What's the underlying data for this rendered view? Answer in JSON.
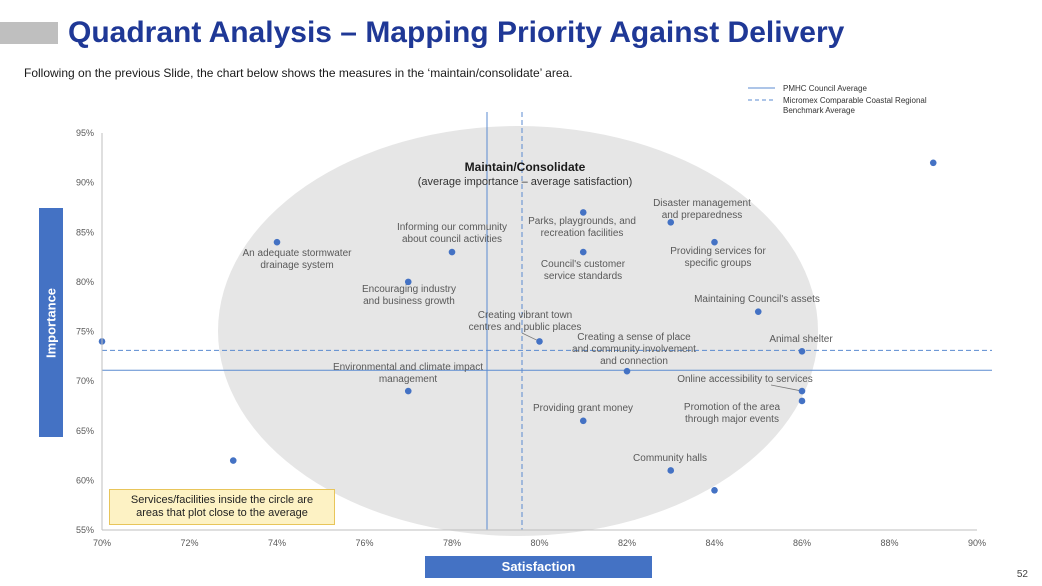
{
  "header": {
    "title": "Quadrant Analysis – Mapping Priority Against Delivery",
    "subtitle": "Following on the previous Slide, the chart below shows the measures in the ‘maintain/consolidate’ area.",
    "page_number": "52"
  },
  "note": "Services/facilities inside the circle are areas that plot close to the average",
  "chart_data": {
    "type": "scatter",
    "xlabel": "Satisfaction",
    "ylabel": "Importance",
    "xlim": [
      70,
      90
    ],
    "ylim": [
      55,
      95
    ],
    "x_ticks": [
      "70%",
      "72%",
      "74%",
      "76%",
      "78%",
      "80%",
      "82%",
      "84%",
      "86%",
      "88%",
      "90%"
    ],
    "y_ticks": [
      "55%",
      "60%",
      "65%",
      "70%",
      "75%",
      "80%",
      "85%",
      "90%",
      "95%"
    ],
    "legend": {
      "position": "top-right",
      "entries": [
        {
          "label": "PMHC Council Average",
          "style": "solid"
        },
        {
          "label": "Micromex Comparable Coastal Regional Benchmark Average",
          "style": "dashed"
        }
      ]
    },
    "reference_lines": {
      "council_avg": {
        "x": 78.8,
        "y": 71.1
      },
      "benchmark_avg": {
        "x": 79.6,
        "y": 73.1
      }
    },
    "region": {
      "label": "Maintain/Consolidate",
      "sublabel": "(average importance – average satisfaction)"
    },
    "colors": {
      "point": "#4472c4",
      "line": "#5b8bd0",
      "ellipse": "#e6e6e6",
      "text": "#595959"
    },
    "points": [
      {
        "x": 70.0,
        "y": 74,
        "label": ""
      },
      {
        "x": 73.0,
        "y": 62,
        "label": ""
      },
      {
        "x": 74.0,
        "y": 84,
        "label": "An adequate stormwater drainage system"
      },
      {
        "x": 77.0,
        "y": 80,
        "label": "Encouraging industry and business growth"
      },
      {
        "x": 77.0,
        "y": 69,
        "label": "Environmental and climate impact management"
      },
      {
        "x": 78.0,
        "y": 83,
        "label": "Informing our community about council activities"
      },
      {
        "x": 80.0,
        "y": 74,
        "label": "Creating vibrant town centres and public places"
      },
      {
        "x": 81.0,
        "y": 87,
        "label": "Parks, playgrounds, and recreation facilities"
      },
      {
        "x": 81.0,
        "y": 83,
        "label": "Council's customer service standards"
      },
      {
        "x": 81.0,
        "y": 66,
        "label": "Providing grant money"
      },
      {
        "x": 82.0,
        "y": 71,
        "label": "Creating a sense of place and community involvement and connection"
      },
      {
        "x": 83.0,
        "y": 86,
        "label": "Disaster management and preparedness"
      },
      {
        "x": 83.0,
        "y": 61,
        "label": "Community halls"
      },
      {
        "x": 84.0,
        "y": 84,
        "label": "Providing services for specific groups"
      },
      {
        "x": 84.0,
        "y": 59,
        "label": ""
      },
      {
        "x": 85.0,
        "y": 77,
        "label": "Maintaining Council's assets"
      },
      {
        "x": 86.0,
        "y": 73,
        "label": "Animal shelter"
      },
      {
        "x": 86.0,
        "y": 69,
        "label": "Online accessibility to services"
      },
      {
        "x": 86.0,
        "y": 68,
        "label": "Promotion of the area through major events"
      },
      {
        "x": 89.0,
        "y": 92,
        "label": ""
      }
    ]
  }
}
